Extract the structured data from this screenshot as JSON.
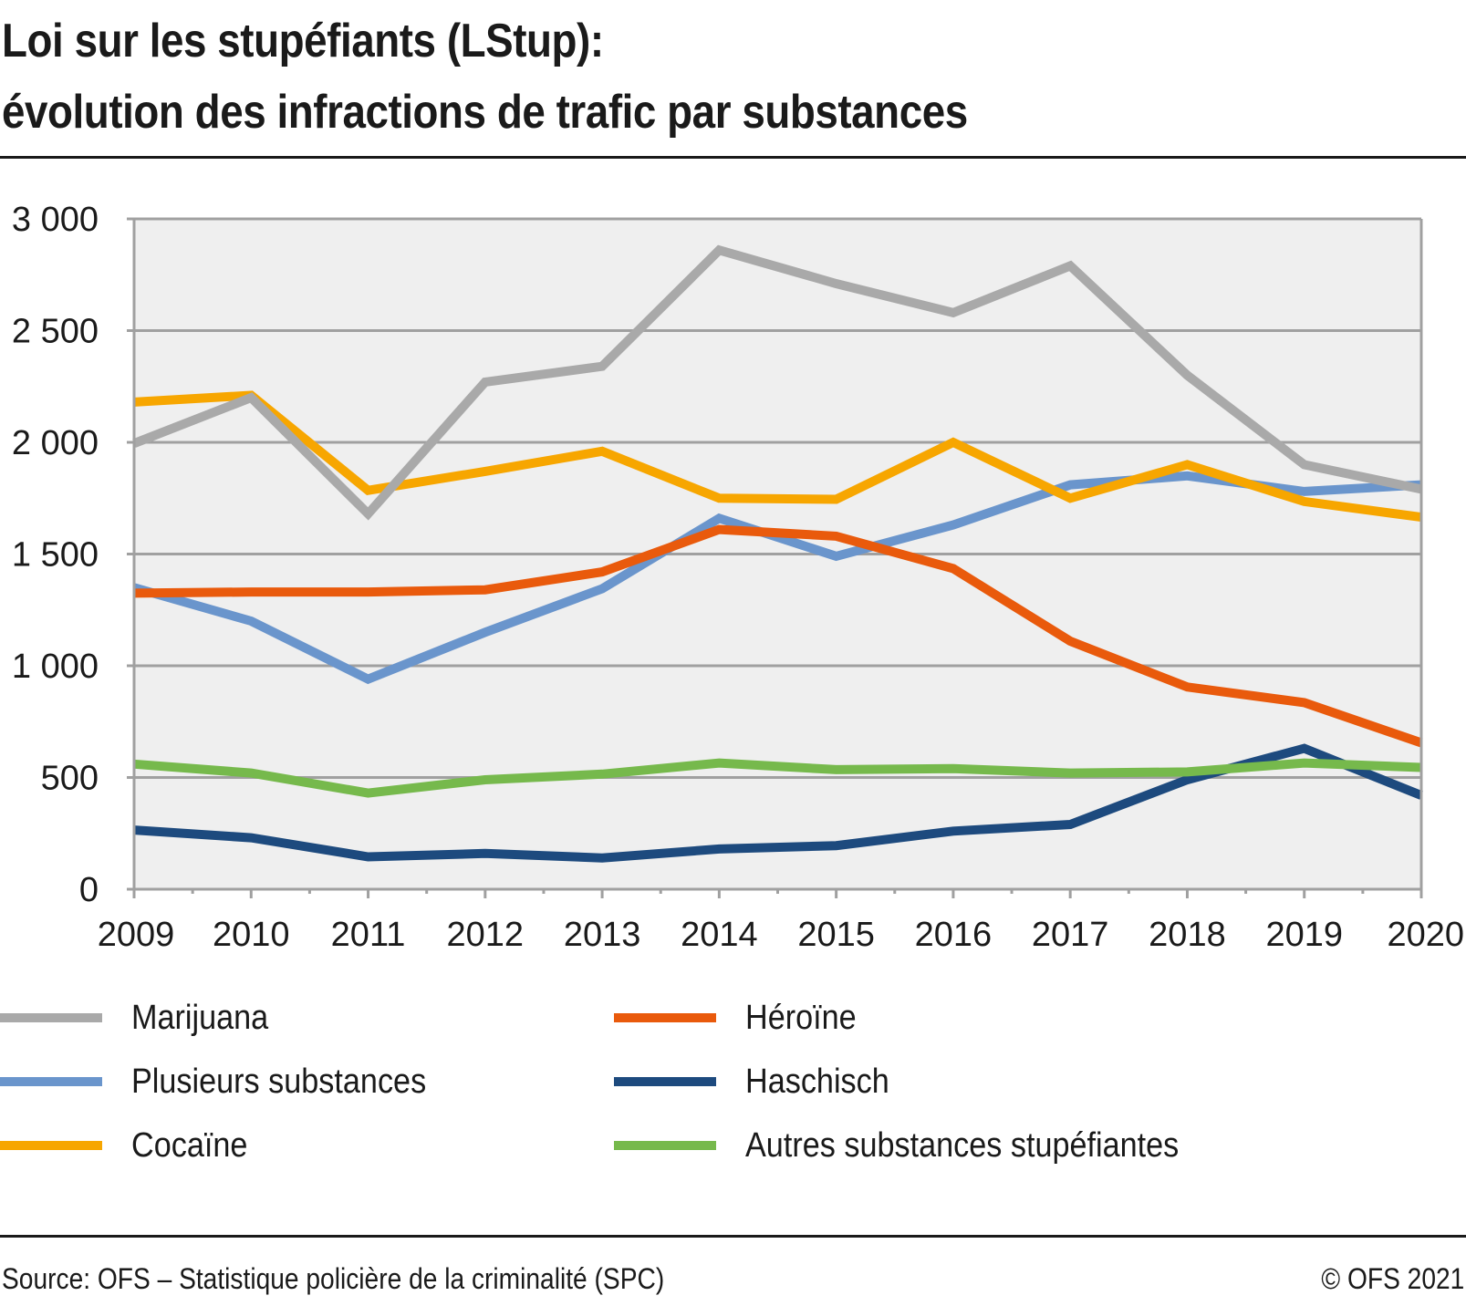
{
  "header": {
    "title_line1": "Loi sur les stupéfiants (LStup):",
    "title_line2": "évolution des infractions de trafic par substances"
  },
  "footer": {
    "source": "Source: OFS – Statistique policière de la criminalité (SPC)",
    "copyright": "© OFS 2021"
  },
  "chart_data": {
    "type": "line",
    "title": "Loi sur les stupéfiants (LStup): évolution des infractions de trafic par substances",
    "xlabel": "",
    "ylabel": "",
    "x": [
      "2009",
      "2010",
      "2011",
      "2012",
      "2013",
      "2014",
      "2015",
      "2016",
      "2017",
      "2018",
      "2019",
      "2020"
    ],
    "ylim": [
      0,
      3000
    ],
    "yticks": [
      0,
      500,
      1000,
      1500,
      2000,
      2500,
      3000
    ],
    "ytick_labels": [
      "0",
      "500",
      "1 000",
      "1 500",
      "2 000",
      "2 500",
      "3 000"
    ],
    "grid": true,
    "legend_position": "bottom",
    "plot_background": "#efefef",
    "series": [
      {
        "name": "Marijuana",
        "color": "#a9a9a9",
        "values": [
          1995,
          2200,
          1680,
          2270,
          2340,
          2860,
          2710,
          2580,
          2790,
          2300,
          1900,
          1790
        ]
      },
      {
        "name": "Plusieurs substances",
        "color": "#6a95cc",
        "values": [
          1350,
          1200,
          940,
          1150,
          1345,
          1660,
          1490,
          1630,
          1810,
          1850,
          1780,
          1810
        ]
      },
      {
        "name": "Cocaïne",
        "color": "#f7a600",
        "values": [
          2180,
          2210,
          1785,
          1870,
          1960,
          1750,
          1745,
          2000,
          1750,
          1900,
          1735,
          1665
        ]
      },
      {
        "name": "Héroïne",
        "color": "#e95a0c",
        "values": [
          1325,
          1330,
          1330,
          1340,
          1420,
          1610,
          1580,
          1435,
          1110,
          905,
          835,
          655
        ]
      },
      {
        "name": "Haschisch",
        "color": "#1d4a7e",
        "values": [
          265,
          230,
          145,
          160,
          140,
          180,
          195,
          260,
          290,
          490,
          630,
          420
        ]
      },
      {
        "name": "Autres substances stupéfiantes",
        "color": "#76b94c",
        "values": [
          560,
          520,
          430,
          490,
          515,
          565,
          535,
          540,
          520,
          525,
          565,
          545
        ]
      }
    ],
    "draw_order": [
      1,
      3,
      4,
      5,
      2,
      0
    ]
  },
  "legend": {
    "items": [
      {
        "label": "Marijuana",
        "color": "#a9a9a9"
      },
      {
        "label": "Plusieurs substances",
        "color": "#6a95cc"
      },
      {
        "label": "Cocaïne",
        "color": "#f7a600"
      },
      {
        "label": "Héroïne",
        "color": "#e95a0c"
      },
      {
        "label": "Haschisch",
        "color": "#1d4a7e"
      },
      {
        "label": "Autres substances stupéfiantes",
        "color": "#76b94c"
      }
    ]
  }
}
